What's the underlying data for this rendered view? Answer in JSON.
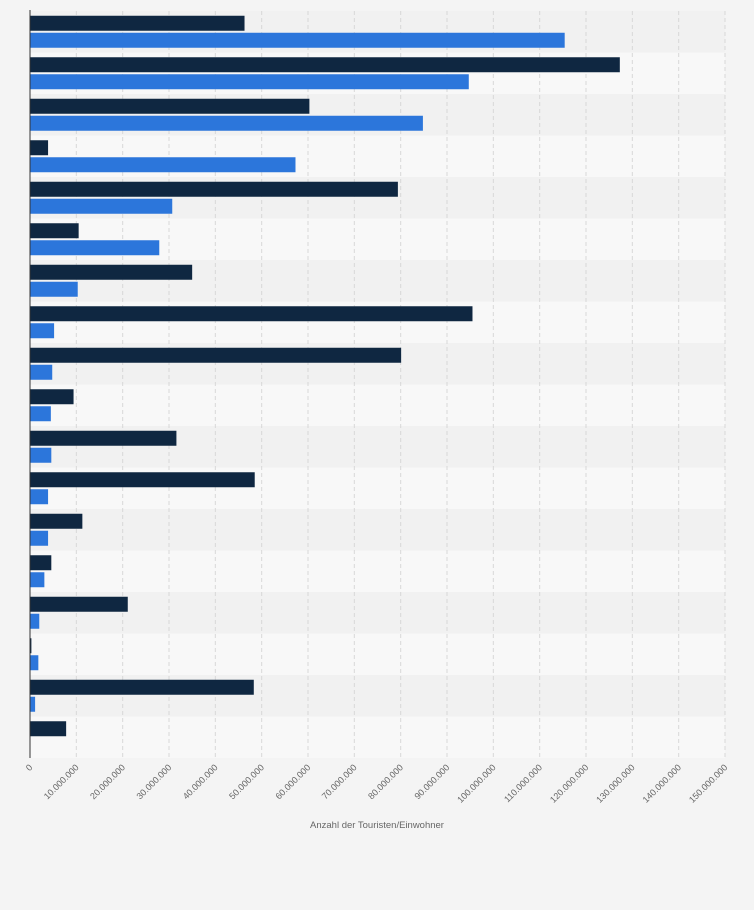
{
  "chart_data": {
    "type": "bar",
    "orientation": "horizontal",
    "xlabel": "Anzahl der Touristen/Einwohner",
    "xlim": [
      0,
      150000000
    ],
    "tick_values": [
      0,
      10000000,
      20000000,
      30000000,
      40000000,
      50000000,
      60000000,
      70000000,
      80000000,
      90000000,
      100000000,
      110000000,
      120000000,
      130000000,
      140000000,
      150000000
    ],
    "tick_labels": [
      "0",
      "10.000.000",
      "20.000.000",
      "30.000.000",
      "40.000.000",
      "50.000.000",
      "60.000.000",
      "70.000.000",
      "80.000.000",
      "90.000.000",
      "100.000.000",
      "110.000.000",
      "120.000.000",
      "130.000.000",
      "140.000.000",
      "150.000.000"
    ],
    "series": [
      {
        "name": "series-dark",
        "color": "#0f2741",
        "values": [
          46300000,
          127300000,
          60300000,
          3900000,
          79400000,
          10500000,
          35000000,
          95500000,
          80100000,
          9400000,
          31600000,
          48500000,
          11300000,
          4600000,
          21100000,
          300000,
          48300000,
          7800000
        ]
      },
      {
        "name": "series-blue",
        "color": "#2c76db",
        "values": [
          115400000,
          94700000,
          84800000,
          57300000,
          30700000,
          27900000,
          10300000,
          5200000,
          4800000,
          4500000,
          4600000,
          3900000,
          3900000,
          3100000,
          2000000,
          1800000,
          1100000,
          null
        ]
      }
    ]
  }
}
